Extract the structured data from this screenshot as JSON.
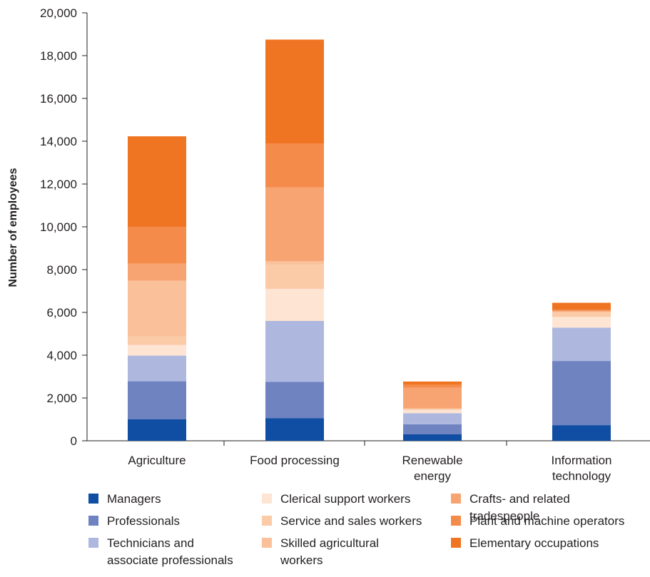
{
  "chart_data": {
    "type": "bar",
    "stacked": true,
    "ylabel": "Number of employees",
    "ylim": [
      0,
      20000
    ],
    "yticks": [
      0,
      2000,
      4000,
      6000,
      8000,
      10000,
      12000,
      14000,
      16000,
      18000,
      20000
    ],
    "ytick_labels": [
      "0",
      "2,000",
      "4,000",
      "6,000",
      "8,000",
      "10,000",
      "12,000",
      "14,000",
      "16,000",
      "18,000",
      "20,000"
    ],
    "categories": [
      [
        "Agriculture"
      ],
      [
        "Food processing"
      ],
      [
        "Renewable",
        "energy"
      ],
      [
        "Information",
        "technology"
      ]
    ],
    "series": [
      {
        "name": "Managers",
        "lines": [
          "Managers"
        ],
        "color": "#0f4ea2",
        "values": [
          1000,
          1050,
          300,
          730
        ]
      },
      {
        "name": "Professionals",
        "lines": [
          "Professionals"
        ],
        "color": "#6f83c1",
        "values": [
          1780,
          1700,
          470,
          3000
        ]
      },
      {
        "name": "Technicians and associate professionals",
        "lines": [
          "Technicians and",
          "associate professionals"
        ],
        "color": "#aeb8de",
        "values": [
          1200,
          2850,
          520,
          1560
        ]
      },
      {
        "name": "Clerical support workers",
        "lines": [
          "Clerical support workers"
        ],
        "color": "#fde4d3",
        "values": [
          500,
          1500,
          150,
          500
        ]
      },
      {
        "name": "Service and sales workers",
        "lines": [
          "Service and sales workers"
        ],
        "color": "#fbcaa7",
        "values": [
          400,
          1150,
          50,
          200
        ]
      },
      {
        "name": "Skilled agricultural workers",
        "lines": [
          "Skilled agricultural",
          "workers"
        ],
        "color": "#fac09a",
        "values": [
          2600,
          150,
          20,
          50
        ]
      },
      {
        "name": "Crafts- and related tradespeople",
        "lines": [
          "Crafts- and related",
          "tradespeople"
        ],
        "color": "#f7a472",
        "values": [
          800,
          3450,
          970,
          30
        ]
      },
      {
        "name": "Plant and machine operators",
        "lines": [
          "Plant and machine operators"
        ],
        "color": "#f48b4b",
        "values": [
          1720,
          2050,
          130,
          50
        ]
      },
      {
        "name": "Elementary occupations",
        "lines": [
          "Elementary occupations"
        ],
        "color": "#f07523",
        "values": [
          4230,
          4850,
          160,
          330
        ]
      }
    ],
    "grid": false,
    "legend_position": "bottom"
  }
}
